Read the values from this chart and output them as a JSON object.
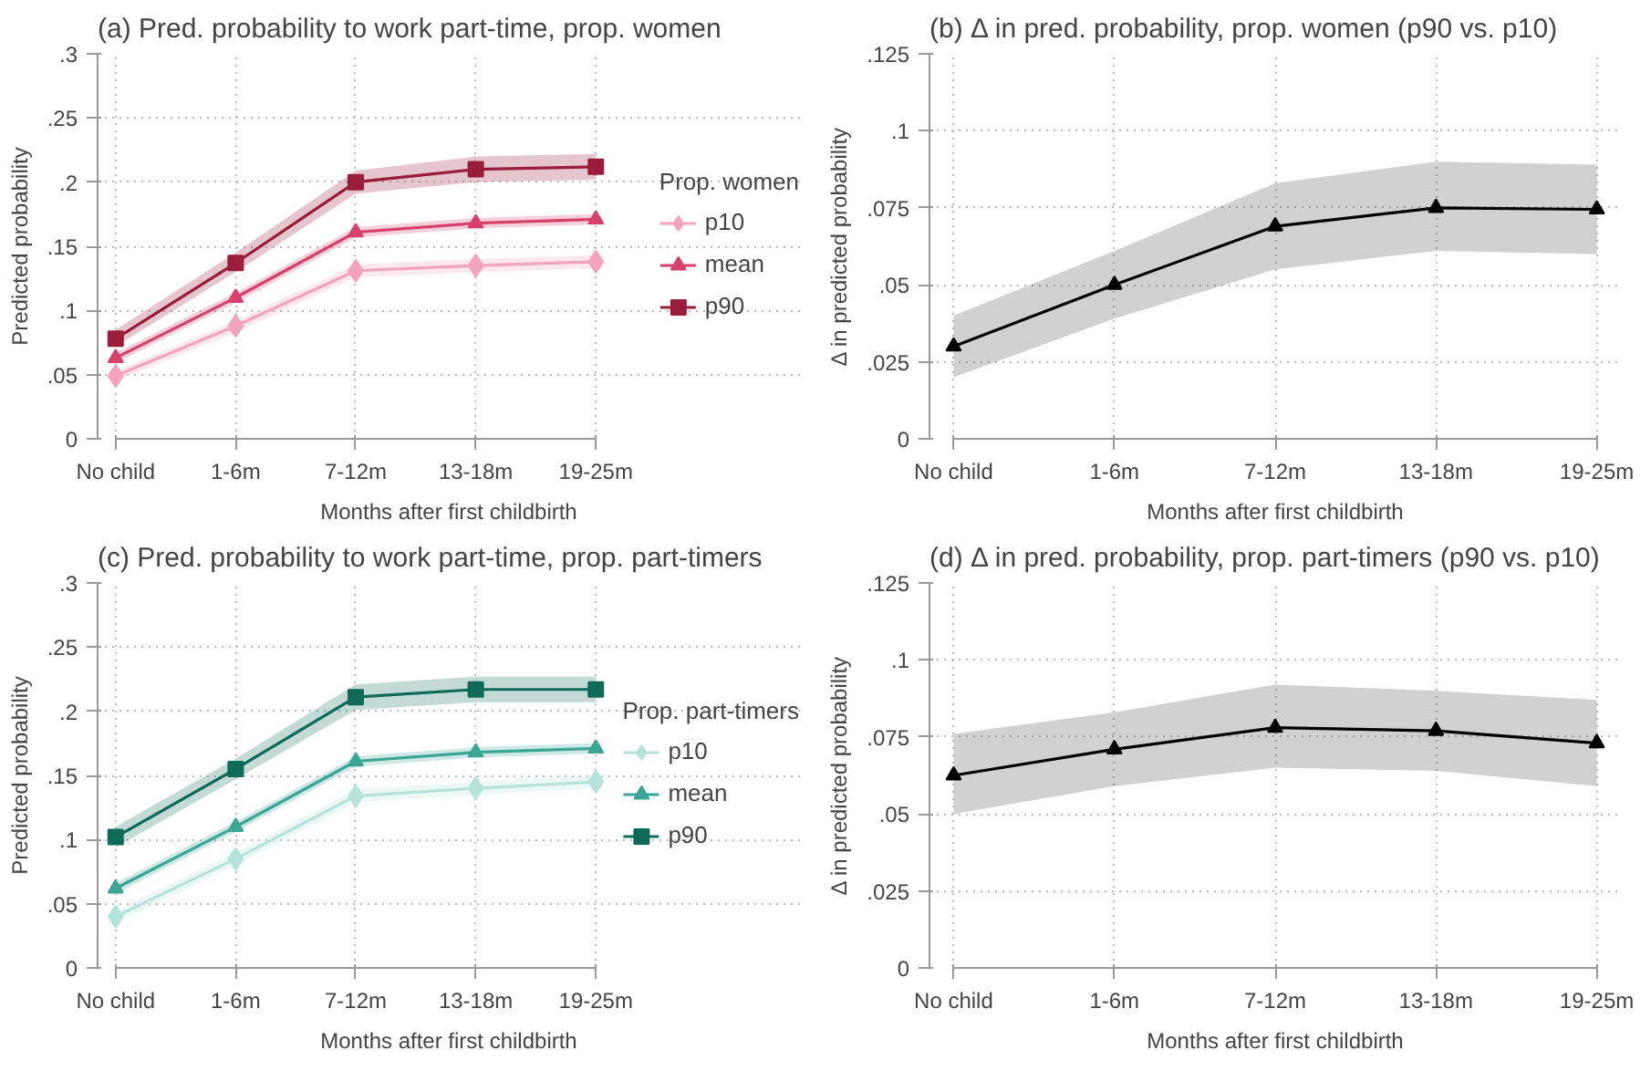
{
  "chart_data": [
    {
      "type": "line",
      "title": "(a) Pred. probability to work part-time, prop. women",
      "xlabel": "Months after first childbirth",
      "ylabel": "Predicted probability",
      "legend_title": "Prop. women",
      "legend": "right",
      "grid": true,
      "line_style": "solid",
      "categories": [
        "No child",
        "1-6m",
        "7-12m",
        "13-18m",
        "19-25m"
      ],
      "ylim": [
        0,
        0.3
      ],
      "yticks": [
        0,
        {
          "value": 0.05,
          "label": ".05"
        },
        {
          "value": 0.1,
          "label": ".1"
        },
        {
          "value": 0.15,
          "label": ".15"
        },
        {
          "value": 0.2,
          "label": ".2"
        },
        {
          "value": 0.25,
          "label": ".25"
        },
        {
          "value": 0.3,
          "label": ".3"
        }
      ],
      "series": [
        {
          "name": "p10",
          "color": "#f2a3bd",
          "marker": "diamond",
          "values": [
            0.049,
            0.088,
            0.131,
            0.135,
            0.138
          ],
          "lower": [
            0.045,
            0.083,
            0.126,
            0.13,
            0.133
          ],
          "upper": [
            0.053,
            0.092,
            0.136,
            0.14,
            0.143
          ]
        },
        {
          "name": "mean",
          "color": "#d6416b",
          "marker": "triangle",
          "values": [
            0.063,
            0.11,
            0.161,
            0.168,
            0.171
          ],
          "lower": [
            0.059,
            0.106,
            0.157,
            0.164,
            0.167
          ],
          "upper": [
            0.067,
            0.114,
            0.165,
            0.172,
            0.175
          ]
        },
        {
          "name": "p90",
          "color": "#9a1c3b",
          "marker": "square",
          "values": [
            0.078,
            0.137,
            0.2,
            0.21,
            0.212
          ],
          "lower": [
            0.072,
            0.13,
            0.191,
            0.2,
            0.202
          ],
          "upper": [
            0.085,
            0.145,
            0.209,
            0.22,
            0.222
          ]
        }
      ]
    },
    {
      "type": "line",
      "title": "(b) Δ in pred. probability, prop. women (p90 vs. p10)",
      "xlabel": "Months after first childbirth",
      "ylabel": "Δ in predicted probability",
      "legend": false,
      "grid": true,
      "line_style": "solid",
      "categories": [
        "No child",
        "1-6m",
        "7-12m",
        "13-18m",
        "19-25m"
      ],
      "ylim": [
        0,
        0.125
      ],
      "yticks": [
        0,
        {
          "value": 0.025,
          "label": ".025"
        },
        {
          "value": 0.05,
          "label": ".05"
        },
        {
          "value": 0.075,
          "label": ".075"
        },
        {
          "value": 0.1,
          "label": ".1"
        },
        {
          "value": 0.125,
          "label": ".125"
        }
      ],
      "series": [
        {
          "color": "#000000",
          "marker": "triangle",
          "values": [
            0.03,
            0.05,
            0.069,
            0.075,
            0.0745
          ],
          "lower": [
            0.02,
            0.039,
            0.055,
            0.061,
            0.06
          ],
          "upper": [
            0.04,
            0.061,
            0.083,
            0.09,
            0.089
          ]
        }
      ]
    },
    {
      "type": "line",
      "title": "(c) Pred. probability to work part-time, prop. part-timers",
      "xlabel": "Months after first childbirth",
      "ylabel": "Predicted probability",
      "legend_title": "Prop. part-timers",
      "legend": "right",
      "grid": true,
      "line_style": "solid",
      "categories": [
        "No child",
        "1-6m",
        "7-12m",
        "13-18m",
        "19-25m"
      ],
      "ylim": [
        0,
        0.3
      ],
      "yticks": [
        0,
        {
          "value": 0.05,
          "label": ".05"
        },
        {
          "value": 0.1,
          "label": ".1"
        },
        {
          "value": 0.15,
          "label": ".15"
        },
        {
          "value": 0.2,
          "label": ".2"
        },
        {
          "value": 0.25,
          "label": ".25"
        },
        {
          "value": 0.3,
          "label": ".3"
        }
      ],
      "series": [
        {
          "name": "p10",
          "color": "#b5e3da",
          "marker": "diamond",
          "values": [
            0.04,
            0.085,
            0.134,
            0.14,
            0.145
          ],
          "lower": [
            0.035,
            0.08,
            0.129,
            0.135,
            0.14
          ],
          "upper": [
            0.045,
            0.09,
            0.139,
            0.145,
            0.15
          ]
        },
        {
          "name": "mean",
          "color": "#3ba596",
          "marker": "triangle",
          "values": [
            0.062,
            0.11,
            0.161,
            0.168,
            0.171
          ],
          "lower": [
            0.058,
            0.106,
            0.157,
            0.164,
            0.167
          ],
          "upper": [
            0.066,
            0.114,
            0.165,
            0.172,
            0.175
          ]
        },
        {
          "name": "p90",
          "color": "#0f6a57",
          "marker": "square",
          "values": [
            0.102,
            0.155,
            0.211,
            0.217,
            0.217
          ],
          "lower": [
            0.094,
            0.147,
            0.201,
            0.207,
            0.207
          ],
          "upper": [
            0.11,
            0.163,
            0.221,
            0.227,
            0.227
          ]
        }
      ]
    },
    {
      "type": "line",
      "title": "(d) Δ in pred. probability, prop. part-timers (p90 vs. p10)",
      "xlabel": "Months after first childbirth",
      "ylabel": "Δ in predicted probability",
      "legend": false,
      "grid": true,
      "line_style": "solid",
      "categories": [
        "No child",
        "1-6m",
        "7-12m",
        "13-18m",
        "19-25m"
      ],
      "ylim": [
        0,
        0.125
      ],
      "yticks": [
        0,
        {
          "value": 0.025,
          "label": ".025"
        },
        {
          "value": 0.05,
          "label": ".05"
        },
        {
          "value": 0.075,
          "label": ".075"
        },
        {
          "value": 0.1,
          "label": ".1"
        },
        {
          "value": 0.125,
          "label": ".125"
        }
      ],
      "series": [
        {
          "color": "#000000",
          "marker": "triangle",
          "values": [
            0.0625,
            0.071,
            0.078,
            0.077,
            0.073
          ],
          "lower": [
            0.05,
            0.059,
            0.065,
            0.064,
            0.059
          ],
          "upper": [
            0.076,
            0.083,
            0.092,
            0.09,
            0.087
          ]
        }
      ]
    }
  ]
}
